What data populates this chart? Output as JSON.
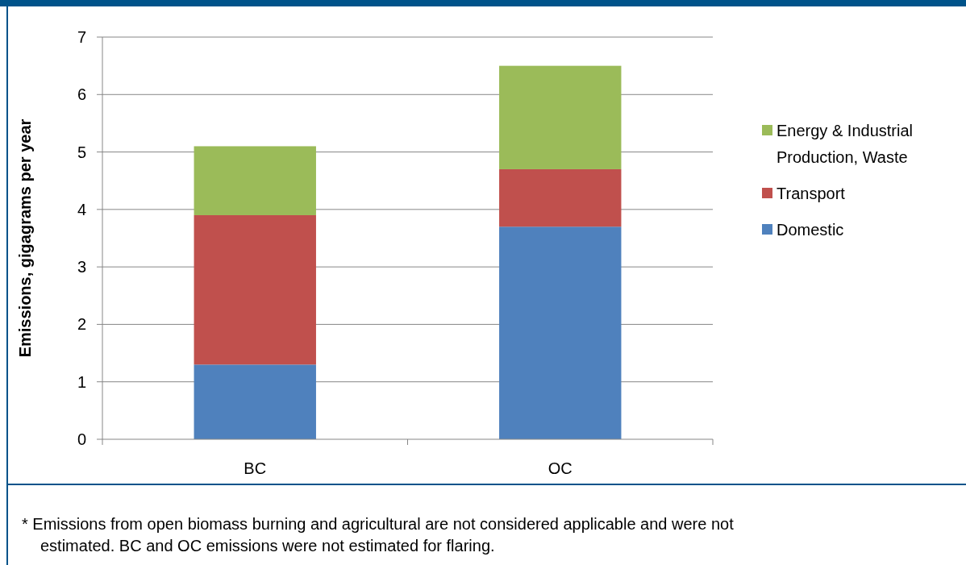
{
  "chart_data": {
    "type": "bar",
    "stacked": true,
    "ylabel": "Emissions, gigagrams per year",
    "categories": [
      "BC",
      "OC"
    ],
    "series": [
      {
        "name": "Domestic",
        "color": "#4f81bd",
        "values": [
          1.3,
          3.7
        ]
      },
      {
        "name": "Transport",
        "color": "#c0504d",
        "values": [
          2.6,
          1.0
        ]
      },
      {
        "name": "Energy & Industrial Production, Waste",
        "color": "#9bbb59",
        "values": [
          1.2,
          1.8
        ]
      }
    ],
    "ylim": [
      0,
      7
    ],
    "yticks": [
      0,
      1,
      2,
      3,
      4,
      5,
      6,
      7
    ],
    "grid": "y",
    "legend": "right",
    "annotations": [
      "* Emissions from open biomass burning and agricultural are not considered applicable and were not estimated. BC and OC emissions were not estimated for flaring."
    ]
  }
}
